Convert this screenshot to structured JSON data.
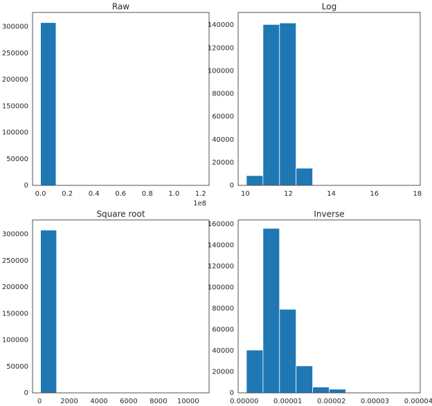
{
  "chart_data": [
    {
      "type": "histogram",
      "title": "Raw",
      "offset_label": "1e8",
      "color": "#1f77b4",
      "bins": [
        0,
        11600000,
        23200000,
        34800000,
        46400000,
        58000000,
        69600000,
        81200000,
        92800000,
        104400000,
        116000000
      ],
      "values": [
        307800,
        0,
        0,
        0,
        0,
        0,
        0,
        0,
        0,
        1
      ],
      "xlim": [
        -6000000,
        126300000
      ],
      "xticks": [
        {
          "value": 0,
          "label": "0.0"
        },
        {
          "value": 20000000,
          "label": "0.2"
        },
        {
          "value": 40000000,
          "label": "0.4"
        },
        {
          "value": 60000000,
          "label": "0.6"
        },
        {
          "value": 80000000,
          "label": "0.8"
        },
        {
          "value": 100000000,
          "label": "1.0"
        },
        {
          "value": 120000000,
          "label": "1.2"
        }
      ],
      "ylim": [
        0,
        327000
      ],
      "yticks": [
        0,
        50000,
        100000,
        150000,
        200000,
        250000,
        300000
      ]
    },
    {
      "type": "histogram",
      "title": "Log",
      "color": "#1f77b4",
      "bins": [
        10.05,
        10.82,
        11.59,
        12.36,
        13.13,
        13.9,
        14.67,
        15.44,
        16.21,
        16.98,
        17.75
      ],
      "values": [
        8500,
        140500,
        141800,
        15000,
        400,
        100,
        30,
        10,
        5,
        2
      ],
      "xlim": [
        9.665,
        18.135
      ],
      "xticks": [
        10,
        12,
        14,
        16,
        18
      ],
      "ylim": [
        0,
        151000
      ],
      "yticks": [
        0,
        20000,
        40000,
        60000,
        80000,
        100000,
        120000,
        140000
      ]
    },
    {
      "type": "histogram",
      "title": "Square root",
      "color": "#1f77b4",
      "bins": [
        70,
        1150,
        2230,
        3310,
        4390,
        5470,
        6550,
        7630,
        8710,
        9790,
        10870
      ],
      "values": [
        307800,
        0,
        0,
        0,
        0,
        0,
        0,
        0,
        0,
        1
      ],
      "xlim": [
        -470,
        11410
      ],
      "xticks": [
        0,
        2000,
        4000,
        6000,
        8000,
        10000
      ],
      "ylim": [
        0,
        327000
      ],
      "yticks": [
        0,
        50000,
        100000,
        150000,
        200000,
        250000,
        300000
      ]
    },
    {
      "type": "histogram",
      "title": "Inverse",
      "color": "#1f77b4",
      "bins": [
        5e-07,
        4.3e-06,
        8.1e-06,
        1.19e-05,
        1.57e-05,
        1.95e-05,
        2.33e-05,
        2.71e-05,
        3.09e-05,
        3.47e-05,
        3.85e-05
      ],
      "values": [
        40600,
        156000,
        79300,
        25600,
        5500,
        3500,
        200,
        50,
        10,
        5
      ],
      "xlim": [
        -1.4e-06,
        4.04e-05
      ],
      "xticks": [
        {
          "value": 0,
          "label": "0.00000"
        },
        {
          "value": 1e-05,
          "label": "0.00001"
        },
        {
          "value": 2e-05,
          "label": "0.00002"
        },
        {
          "value": 3e-05,
          "label": "0.00003"
        },
        {
          "value": 4e-05,
          "label": "0.00004"
        }
      ],
      "ylim": [
        0,
        164000
      ],
      "yticks": [
        0,
        20000,
        40000,
        60000,
        80000,
        100000,
        120000,
        140000,
        160000
      ]
    }
  ]
}
